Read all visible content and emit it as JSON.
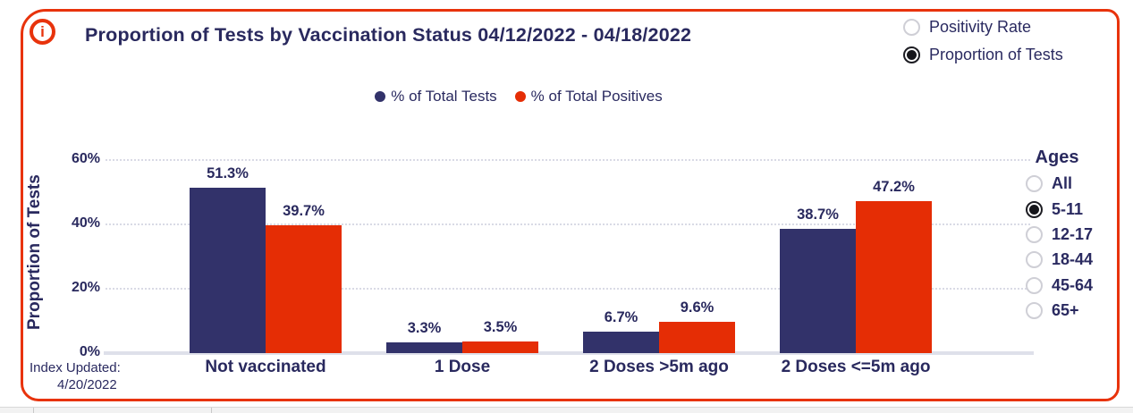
{
  "header": {
    "title": "Proportion of Tests by Vaccination Status 04/12/2022 - 04/18/2022",
    "info_icon_glyph": "i"
  },
  "view_toggle": {
    "options": [
      {
        "label": "Positivity Rate",
        "selected": false
      },
      {
        "label": "Proportion of Tests",
        "selected": true
      }
    ]
  },
  "legend": {
    "items": [
      {
        "label": "% of Total Tests",
        "color": "#32326A"
      },
      {
        "label": "% of Total Positives",
        "color": "#E52D05"
      }
    ]
  },
  "chart_data": {
    "type": "bar",
    "title": "Proportion of Tests by Vaccination Status 04/12/2022 - 04/18/2022",
    "categories": [
      "Not vaccinated",
      "1 Dose",
      "2 Doses >5m ago",
      "2 Doses <=5m ago"
    ],
    "series": [
      {
        "name": "% of Total Tests",
        "color": "#32326A",
        "values": [
          51.3,
          3.3,
          6.7,
          38.7
        ]
      },
      {
        "name": "% of Total Positives",
        "color": "#E52D05",
        "values": [
          39.7,
          3.5,
          9.6,
          47.2
        ]
      }
    ],
    "value_suffix": "%",
    "xlabel": "",
    "ylabel": "Proportion of Tests",
    "yticks": [
      0,
      20,
      40,
      60
    ],
    "ytick_labels": [
      "0%",
      "20%",
      "40%",
      "60%"
    ],
    "ylim": [
      0,
      60
    ],
    "grid": "horizontal-dotted",
    "legend_position": "top-center"
  },
  "ages_panel": {
    "title": "Ages",
    "options": [
      {
        "label": "All",
        "selected": false
      },
      {
        "label": "5-11",
        "selected": true
      },
      {
        "label": "12-17",
        "selected": false
      },
      {
        "label": "18-44",
        "selected": false
      },
      {
        "label": "45-64",
        "selected": false
      },
      {
        "label": "65+",
        "selected": false
      }
    ]
  },
  "footer": {
    "index_updated_label": "Index Updated:",
    "index_updated_date": "4/20/2022"
  },
  "colors": {
    "accent_border": "#E8330C",
    "navy_text": "#29295E",
    "bar_navy": "#32326A",
    "bar_red": "#E52D05"
  }
}
